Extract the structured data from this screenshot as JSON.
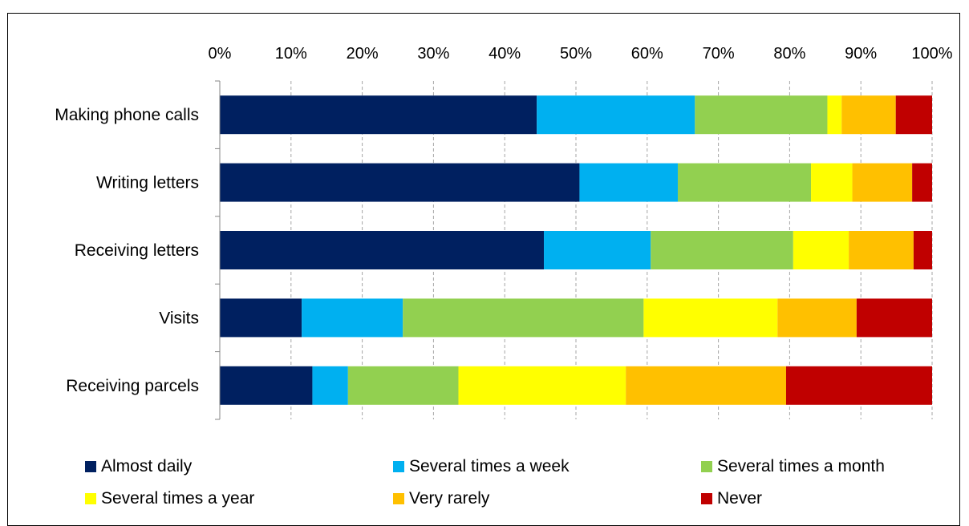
{
  "chart_data": {
    "type": "bar",
    "orientation": "horizontal",
    "stacked": "percent",
    "categories": [
      "Making phone calls",
      "Writing letters",
      "Receiving letters",
      "Visits",
      "Receiving parcels"
    ],
    "series": [
      {
        "name": "Almost daily",
        "color": "#002060",
        "values": [
          44.5,
          50.5,
          45.5,
          11.5,
          13.0
        ]
      },
      {
        "name": "Several times a week",
        "color": "#00B0F0",
        "values": [
          22.2,
          13.8,
          15.0,
          14.2,
          5.0
        ]
      },
      {
        "name": "Several times a month",
        "color": "#92D050",
        "values": [
          18.6,
          18.7,
          20.0,
          33.8,
          15.5
        ]
      },
      {
        "name": "Several times a year",
        "color": "#FFFF00",
        "values": [
          2.0,
          5.8,
          7.8,
          18.8,
          23.5
        ]
      },
      {
        "name": "Very rarely",
        "color": "#FFC000",
        "values": [
          7.6,
          8.4,
          9.1,
          11.1,
          22.5
        ]
      },
      {
        "name": "Never",
        "color": "#C00000",
        "values": [
          5.1,
          2.8,
          2.6,
          10.6,
          20.5
        ]
      }
    ],
    "x_ticks": [
      "0%",
      "10%",
      "20%",
      "30%",
      "40%",
      "50%",
      "60%",
      "70%",
      "80%",
      "90%",
      "100%"
    ],
    "xlim": [
      0,
      100
    ],
    "axis_position": "top",
    "grid": "vertical-dashed",
    "legend": "bottom"
  }
}
